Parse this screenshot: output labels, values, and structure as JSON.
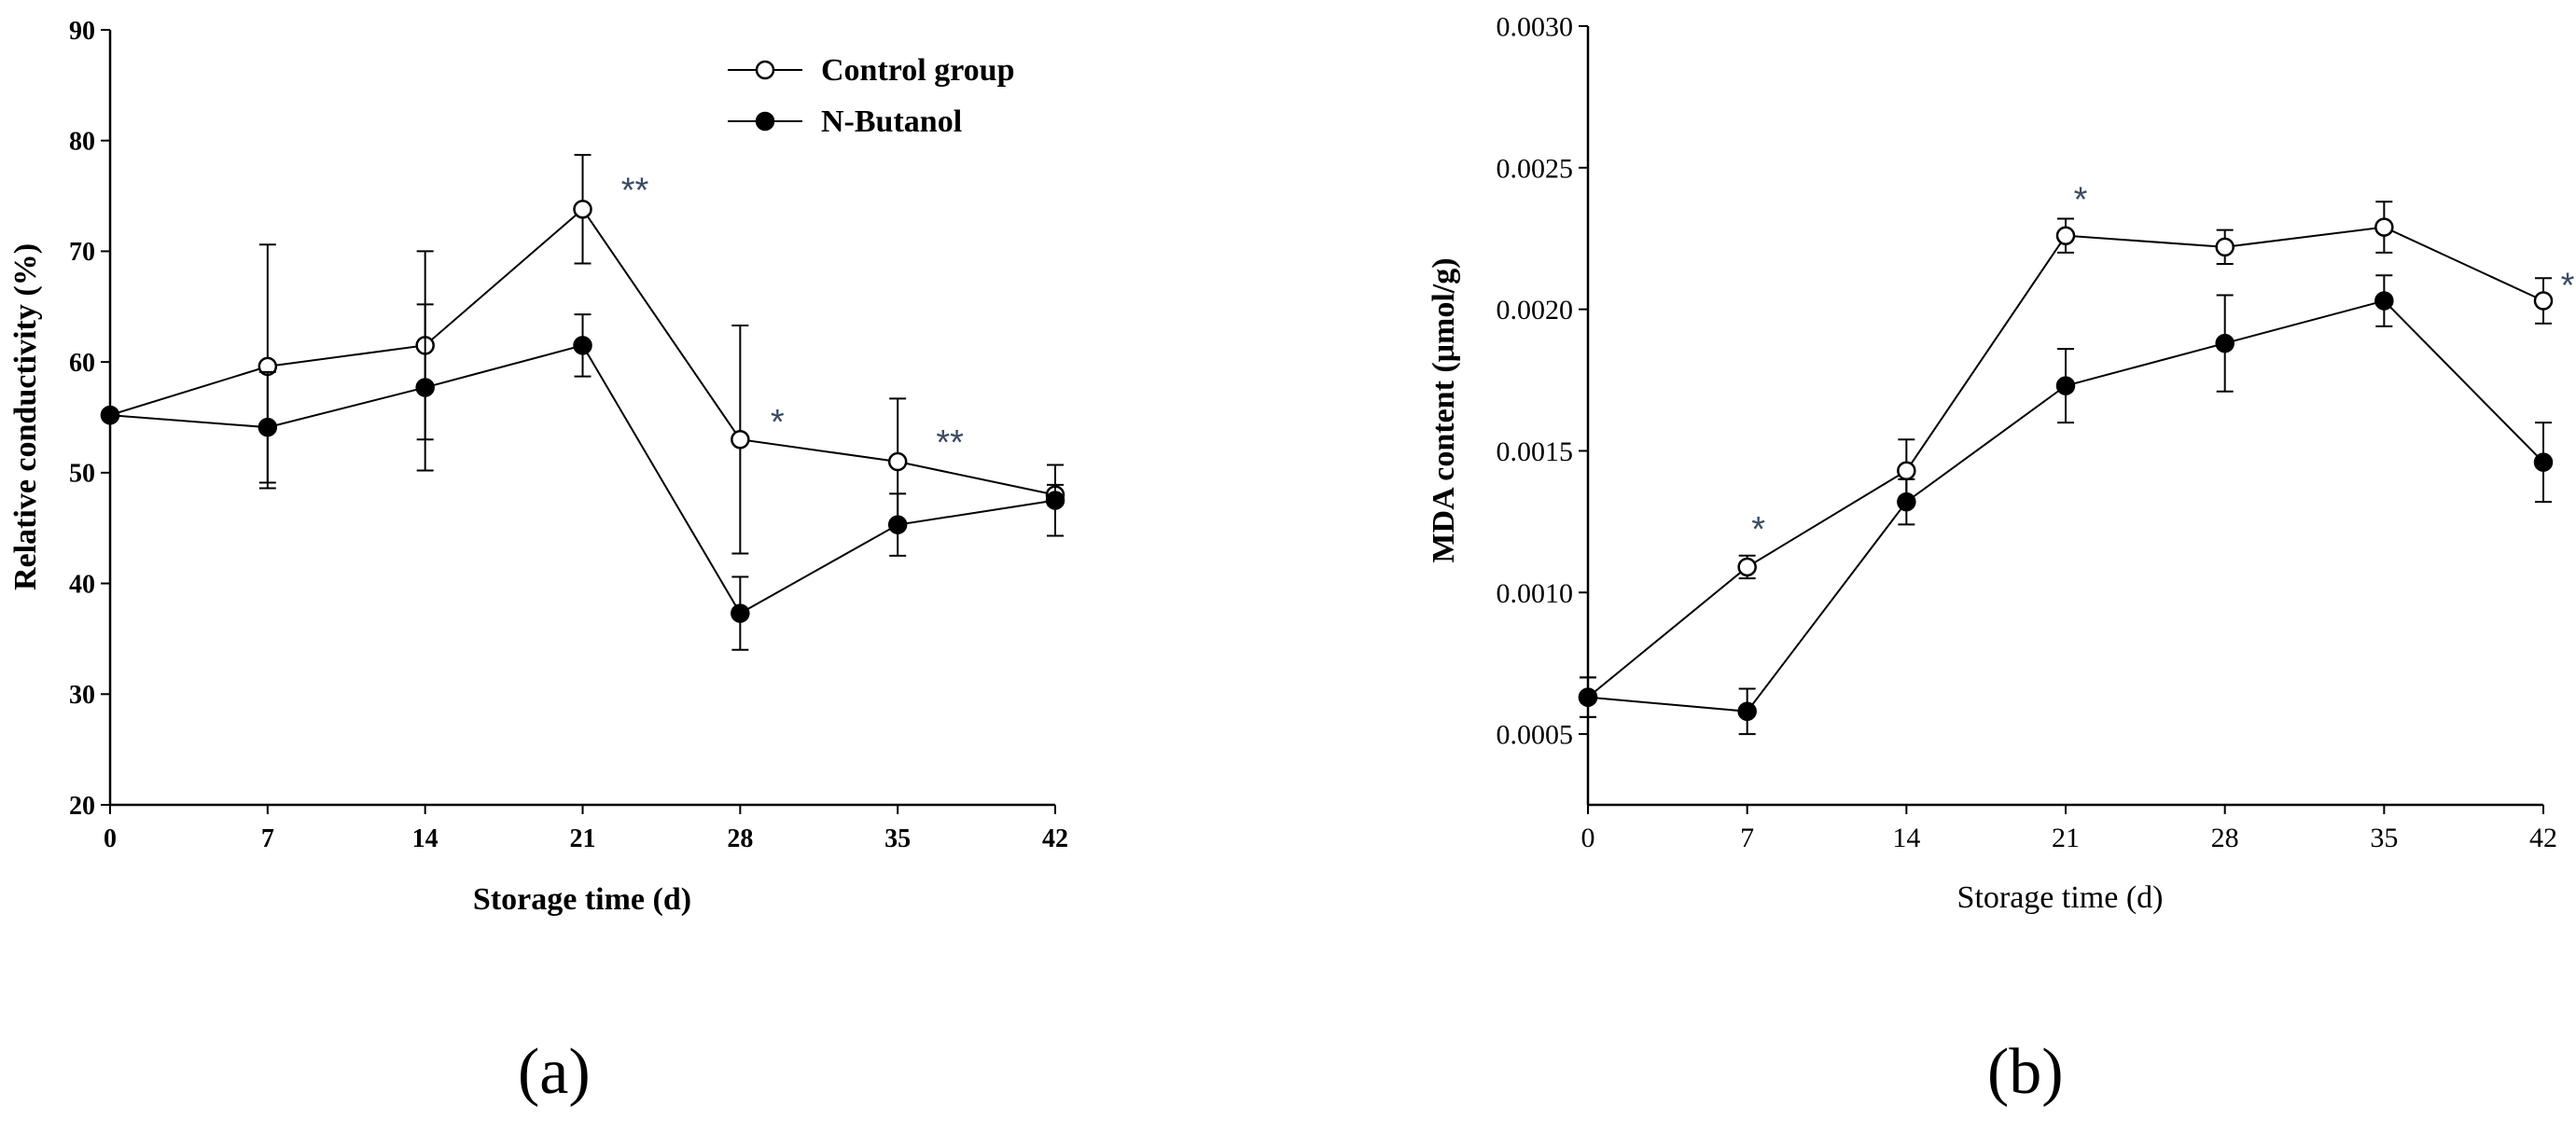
{
  "panels": [
    {
      "label": "(a)",
      "chart_data": {
        "type": "line",
        "title": "",
        "xlabel": "Storage time (d)",
        "ylabel": "Relative conductivity (%)",
        "x": [
          0,
          7,
          14,
          21,
          28,
          35,
          42
        ],
        "xticks": [
          "0",
          "7",
          "14",
          "21",
          "28",
          "35",
          "42"
        ],
        "ylim": [
          20,
          90
        ],
        "yticks": [
          "20",
          "30",
          "40",
          "50",
          "60",
          "70",
          "80",
          "90"
        ],
        "ytick_values": [
          20,
          30,
          40,
          50,
          60,
          70,
          80,
          90
        ],
        "legend": "top-right",
        "series": [
          {
            "name": "Control group",
            "marker": "open-circle",
            "values": [
              55.2,
              59.6,
              61.5,
              73.8,
              53.0,
              51.0,
              48.0
            ],
            "errors": [
              0.0,
              11.0,
              8.5,
              4.9,
              10.3,
              5.7,
              0.9
            ]
          },
          {
            "name": "N-Butanol",
            "marker": "filled-circle",
            "values": [
              55.2,
              54.1,
              57.7,
              61.5,
              37.3,
              45.3,
              47.5
            ],
            "errors": [
              0.0,
              5.0,
              7.5,
              2.8,
              3.3,
              2.8,
              3.2
            ]
          }
        ],
        "annotations": [
          {
            "x": 21,
            "text": "**"
          },
          {
            "x": 28,
            "text": "*"
          },
          {
            "x": 35,
            "text": "**"
          }
        ]
      }
    },
    {
      "label": "(b)",
      "chart_data": {
        "type": "line",
        "title": "",
        "xlabel": "Storage time (d)",
        "ylabel": "MDA content (μmol/g)",
        "x": [
          0,
          7,
          14,
          21,
          28,
          35,
          42
        ],
        "xticks": [
          "0",
          "7",
          "14",
          "21",
          "28",
          "35",
          "42"
        ],
        "ylim": [
          0.00025,
          0.003
        ],
        "yticks": [
          "0.0005",
          "0.0010",
          "0.0015",
          "0.0020",
          "0.0025",
          "0.0030"
        ],
        "ytick_values": [
          0.0005,
          0.001,
          0.0015,
          0.002,
          0.0025,
          0.003
        ],
        "series": [
          {
            "name": "Control group",
            "marker": "open-circle",
            "values": [
              0.00063,
              0.00109,
              0.00143,
              0.00226,
              0.00222,
              0.00229,
              0.00203
            ],
            "errors": [
              7e-05,
              4e-05,
              0.00011,
              6e-05,
              6e-05,
              9e-05,
              8e-05
            ]
          },
          {
            "name": "N-Butanol",
            "marker": "filled-circle",
            "values": [
              0.00063,
              0.00058,
              0.00132,
              0.00173,
              0.00188,
              0.00203,
              0.00146
            ],
            "errors": [
              7e-05,
              8e-05,
              8e-05,
              0.00013,
              0.00017,
              9e-05,
              0.00014
            ]
          }
        ],
        "annotations": [
          {
            "x": 7,
            "text": "*"
          },
          {
            "x": 21,
            "text": "*"
          },
          {
            "x": 42,
            "text": "*"
          }
        ]
      }
    }
  ]
}
